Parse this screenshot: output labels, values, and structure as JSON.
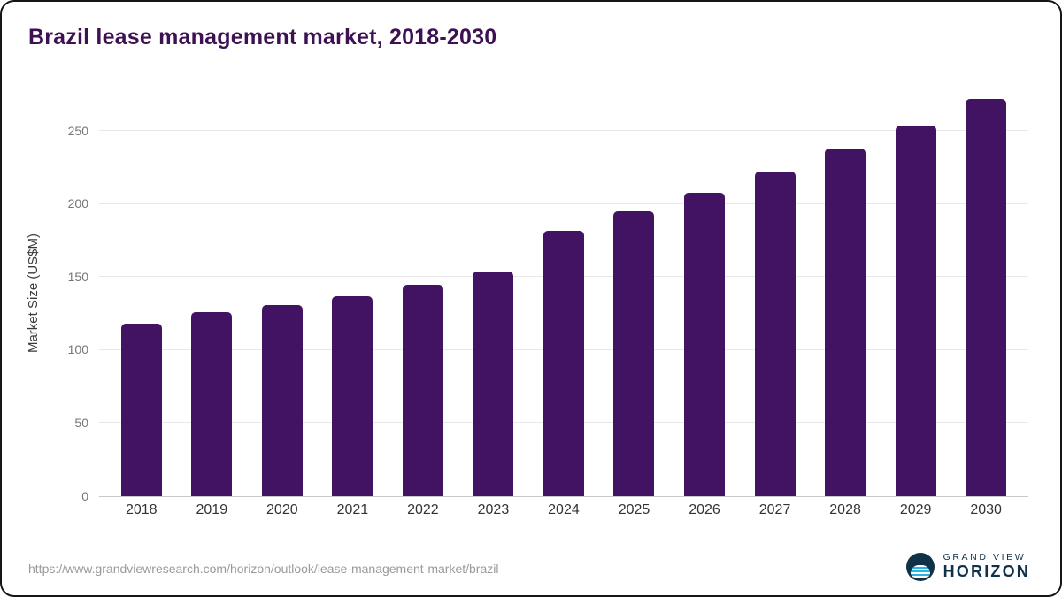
{
  "title": "Brazil lease management market, 2018-2030",
  "source_text": "https://www.grandviewresearch.com/horizon/outlook/lease-management-market/brazil",
  "logo": {
    "line1": "GRAND VIEW",
    "line2": "HORIZON"
  },
  "colors": {
    "bar": "#421263",
    "title": "#3d1152",
    "grid": "#e8e8e8",
    "axis_text": "#767676",
    "x_labels": "#333333",
    "source_text": "#9a9a9a",
    "logo_navy": "#0f3249",
    "logo_cyan": "#2ab5e5"
  },
  "chart_data": {
    "type": "bar",
    "title": "Brazil lease management market, 2018-2030",
    "categories": [
      "2018",
      "2019",
      "2020",
      "2021",
      "2022",
      "2023",
      "2024",
      "2025",
      "2026",
      "2027",
      "2028",
      "2029",
      "2030"
    ],
    "values": [
      118,
      126,
      131,
      137,
      145,
      154,
      182,
      195,
      208,
      222,
      238,
      254,
      272
    ],
    "xlabel": "",
    "ylabel": "Market Size (US$M)",
    "ylim": [
      0,
      278
    ],
    "yticks": [
      0,
      50,
      100,
      150,
      200,
      250
    ],
    "grid": "horizontal",
    "legend": "none",
    "bar_color": "#421263"
  }
}
